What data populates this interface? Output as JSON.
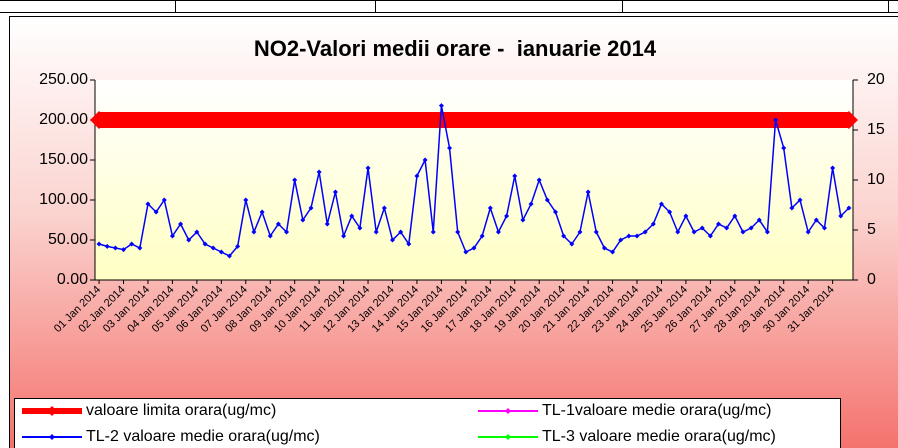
{
  "chart_data": {
    "type": "line",
    "title": "NO2-Valori medii orare -  ianuarie 2014",
    "categories": [
      "01 Jan 2014",
      null,
      null,
      "02 Jan 2014",
      null,
      null,
      "03 Jan 2014",
      null,
      null,
      "04 Jan 2014",
      null,
      null,
      "05 Jan 2014",
      null,
      null,
      "06 Jan 2014",
      null,
      null,
      "07 Jan 2014",
      null,
      null,
      "08 Jan 2014",
      null,
      null,
      "09 Jan 2014",
      null,
      null,
      "10 Jan 2014",
      null,
      null,
      "11 Jan 2014",
      null,
      null,
      "12 Jan 2014",
      null,
      null,
      "13 Jan 2014",
      null,
      null,
      "14 Jan 2014",
      null,
      null,
      "15 Jan 2014",
      null,
      null,
      "16 Jan 2014",
      null,
      null,
      "17 Jan 2014",
      null,
      null,
      "18 Jan 2014",
      null,
      null,
      "19 Jan 2014",
      null,
      null,
      "20 Jan 2014",
      null,
      null,
      "21 Jan 2014",
      null,
      null,
      "22 Jan 2014",
      null,
      null,
      "23 Jan 2014",
      null,
      null,
      "24 Jan 2014",
      null,
      null,
      "25 Jan 2014",
      null,
      null,
      "26 Jan 2014",
      null,
      null,
      "27 Jan 2014",
      null,
      null,
      "28 Jan 2014",
      null,
      null,
      "29 Jan 2014",
      null,
      null,
      "30 Jan 2014",
      null,
      null,
      "31 Jan 2014",
      null,
      null
    ],
    "series": [
      {
        "name": "valoare limita orara(ug/mc)",
        "color": "#ff0000",
        "values": [
          200,
          200,
          200,
          200,
          200,
          200,
          200,
          200,
          200,
          200,
          200,
          200,
          200,
          200,
          200,
          200,
          200,
          200,
          200,
          200,
          200,
          200,
          200,
          200,
          200,
          200,
          200,
          200,
          200,
          200,
          200,
          200,
          200,
          200,
          200,
          200,
          200,
          200,
          200,
          200,
          200,
          200,
          200,
          200,
          200,
          200,
          200,
          200,
          200,
          200,
          200,
          200,
          200,
          200,
          200,
          200,
          200,
          200,
          200,
          200,
          200,
          200,
          200,
          200,
          200,
          200,
          200,
          200,
          200,
          200,
          200,
          200,
          200,
          200,
          200,
          200,
          200,
          200,
          200,
          200,
          200,
          200,
          200,
          200,
          200,
          200,
          200,
          200,
          200,
          200,
          200,
          200,
          200
        ]
      },
      {
        "name": "TL-1valoare medie orara(ug/mc)",
        "color": "#ff00ff",
        "values": [
          null,
          null,
          null,
          null,
          null,
          null,
          null,
          null,
          null,
          null,
          null,
          null,
          null,
          null,
          null,
          null,
          null,
          null,
          null,
          null,
          null,
          null,
          null,
          null,
          null,
          null,
          null,
          null,
          null,
          null,
          null,
          null,
          null,
          null,
          null,
          null,
          null,
          null,
          null,
          null,
          null,
          null,
          null,
          null,
          null,
          null,
          null,
          null,
          null,
          null,
          null,
          null,
          null,
          null,
          null,
          null,
          null,
          null,
          null,
          null,
          null,
          null,
          null,
          null,
          null,
          null,
          null,
          null,
          null,
          null,
          null,
          null,
          null,
          null,
          null,
          null,
          null,
          null,
          null,
          null,
          null,
          null,
          null,
          null,
          null,
          null,
          null,
          null,
          null,
          null,
          null,
          null,
          null
        ]
      },
      {
        "name": "TL-2 valoare medie orara(ug/mc)",
        "color": "#0000ff",
        "values": [
          45,
          42,
          40,
          38,
          45,
          40,
          95,
          85,
          100,
          55,
          70,
          50,
          60,
          45,
          40,
          35,
          30,
          42,
          100,
          60,
          85,
          55,
          70,
          60,
          125,
          75,
          90,
          135,
          70,
          110,
          55,
          80,
          65,
          140,
          60,
          90,
          50,
          60,
          45,
          130,
          150,
          60,
          218,
          165,
          60,
          35,
          40,
          55,
          90,
          60,
          80,
          130,
          75,
          95,
          125,
          100,
          85,
          55,
          45,
          60,
          110,
          60,
          40,
          35,
          50,
          55,
          55,
          60,
          70,
          95,
          85,
          60,
          80,
          60,
          65,
          55,
          70,
          65,
          80,
          60,
          65,
          75,
          60,
          200,
          165,
          90,
          100,
          60,
          75,
          65,
          140,
          80,
          90
        ]
      },
      {
        "name": "TL-3 valoare medie orara(ug/mc)",
        "color": "#00ff00",
        "values": [
          null,
          null,
          null,
          null,
          null,
          null,
          null,
          null,
          null,
          null,
          null,
          null,
          null,
          null,
          null,
          null,
          null,
          null,
          null,
          null,
          null,
          null,
          null,
          null,
          null,
          null,
          null,
          null,
          null,
          null,
          null,
          null,
          null,
          null,
          null,
          null,
          null,
          null,
          null,
          null,
          null,
          null,
          null,
          null,
          null,
          null,
          null,
          null,
          null,
          null,
          null,
          null,
          null,
          null,
          null,
          null,
          null,
          null,
          null,
          null,
          null,
          null,
          null,
          null,
          null,
          null,
          null,
          null,
          null,
          null,
          null,
          null,
          null,
          null,
          null,
          null,
          null,
          null,
          null,
          null,
          null,
          null,
          null,
          null,
          null,
          null,
          null,
          null,
          null,
          null,
          null,
          null,
          null
        ]
      }
    ],
    "ylim": [
      0,
      250
    ],
    "yticks": [
      {
        "value": 0,
        "label": "0.00"
      },
      {
        "value": 50,
        "label": "50.00"
      },
      {
        "value": 100,
        "label": "100.00"
      },
      {
        "value": 150,
        "label": "150.00"
      },
      {
        "value": 200,
        "label": "200.00"
      },
      {
        "value": 250,
        "label": "250.00"
      }
    ],
    "y2lim": [
      0,
      20
    ],
    "y2ticks": [
      0,
      5,
      10,
      15,
      20
    ],
    "grid": false,
    "legend": "bottom"
  }
}
